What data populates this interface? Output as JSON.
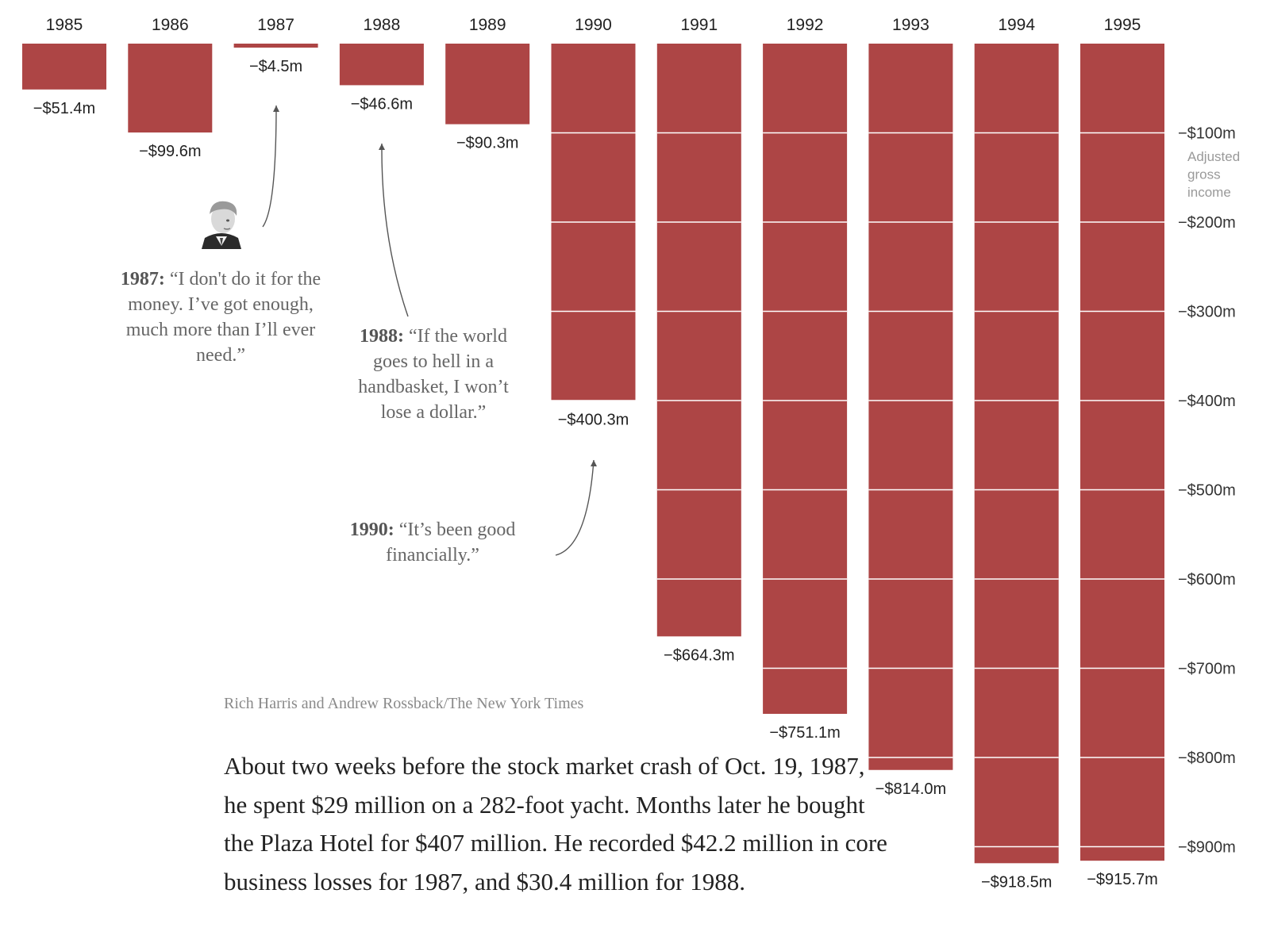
{
  "chart_data": {
    "type": "bar",
    "title": "",
    "xlabel": "",
    "ylabel": "Adjusted gross income",
    "categories": [
      "1985",
      "1986",
      "1987",
      "1988",
      "1989",
      "1990",
      "1991",
      "1992",
      "1993",
      "1994",
      "1995"
    ],
    "values": [
      -51.4,
      -99.6,
      -4.5,
      -46.6,
      -90.3,
      -400.3,
      -664.3,
      -751.1,
      -814.0,
      -918.5,
      -915.7
    ],
    "value_labels": [
      "−$51.4m",
      "−$99.6m",
      "−$4.5m",
      "−$46.6m",
      "−$90.3m",
      "−$400.3m",
      "−$664.3m",
      "−$751.1m",
      "−$814.0m",
      "−$918.5m",
      "−$915.7m"
    ],
    "ticks": [
      -100,
      -200,
      -300,
      -400,
      -500,
      -600,
      -700,
      -800,
      -900
    ],
    "tick_labels": [
      "−$100m",
      "−$200m",
      "−$300m",
      "−$400m",
      "−$500m",
      "−$600m",
      "−$700m",
      "−$800m",
      "−$900m"
    ],
    "ylabel_lines": [
      "Adjusted",
      "gross",
      "income"
    ],
    "ylim": [
      -1000,
      0
    ],
    "bar_color": "#ad4545",
    "grid": false
  },
  "annotations": {
    "q1987": {
      "year": "1987:",
      "text": " “I don't do it for the money. I’ve got enough, much more than I’ll ever need.”"
    },
    "q1988": {
      "year": "1988:",
      "text": " “If the world goes to hell in a handbasket, I won’t lose a dollar.”"
    },
    "q1990": {
      "year": "1990:",
      "text": " “It’s been good financially.”"
    }
  },
  "credit": "Rich Harris and Andrew Rossback/The New York Times",
  "body_text": "About two weeks before the stock market crash of Oct. 19, 1987, he spent $29 million on a 282-foot yacht. Months later he bought the Plaza Hotel for $407 million. He recorded $42.2 million in core business losses for 1987, and $30.4 million for 1988."
}
